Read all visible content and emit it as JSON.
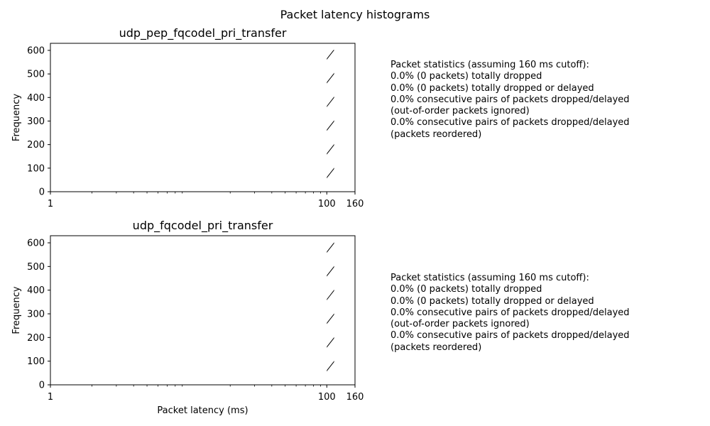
{
  "figure": {
    "title": "Packet latency histograms"
  },
  "chart_data": [
    {
      "type": "bar",
      "title": "udp_pep_fqcodel_pri_transfer",
      "xlabel": "",
      "ylabel": "Frequency",
      "xscale": "log",
      "xlim": [
        1,
        160
      ],
      "ylim": [
        0,
        630
      ],
      "xticks": [
        1,
        100,
        160
      ],
      "yticks": [
        0,
        100,
        200,
        300,
        400,
        500,
        600
      ],
      "bins": [
        {
          "start": 100,
          "end": 113,
          "count": 602,
          "hatch": "/"
        }
      ],
      "stats": {
        "heading": "Packet statistics (assuming 160 ms cutoff):",
        "lines": [
          "0.0% (0 packets) totally dropped",
          "0.0% (0 packets) totally dropped or delayed",
          "0.0% consecutive pairs of packets dropped/delayed",
          "(out-of-order packets ignored)",
          "0.0% consecutive pairs of packets dropped/delayed",
          "(packets reordered)"
        ]
      }
    },
    {
      "type": "bar",
      "title": "udp_fqcodel_pri_transfer",
      "xlabel": "Packet latency (ms)",
      "ylabel": "Frequency",
      "xscale": "log",
      "xlim": [
        1,
        160
      ],
      "ylim": [
        0,
        630
      ],
      "xticks": [
        1,
        100,
        160
      ],
      "yticks": [
        0,
        100,
        200,
        300,
        400,
        500,
        600
      ],
      "bins": [
        {
          "start": 100,
          "end": 113,
          "count": 602,
          "hatch": "/"
        }
      ],
      "stats": {
        "heading": "Packet statistics (assuming 160 ms cutoff):",
        "lines": [
          "0.0% (0 packets) totally dropped",
          "0.0% (0 packets) totally dropped or delayed",
          "0.0% consecutive pairs of packets dropped/delayed",
          "(out-of-order packets ignored)",
          "0.0% consecutive pairs of packets dropped/delayed",
          "(packets reordered)"
        ]
      }
    }
  ]
}
